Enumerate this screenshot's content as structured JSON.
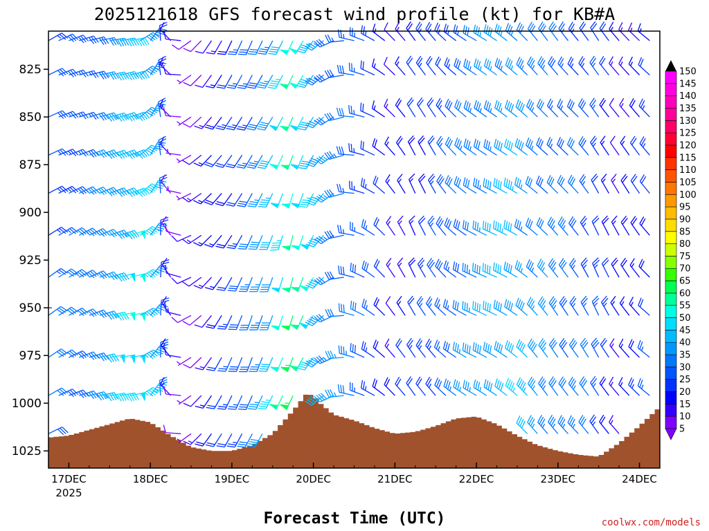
{
  "chart_data": {
    "type": "wind-profile",
    "title": "2025121618 GFS forecast wind profile (kt) for KB#A",
    "xlabel": "Forecast Time (UTC)",
    "ylabel": "",
    "credit": "coolwx.com/models",
    "y_ticks": [
      825,
      850,
      875,
      900,
      925,
      950,
      975,
      1000,
      1025
    ],
    "x_ticks": [
      {
        "label": "17DEC",
        "sub": "2025",
        "hour": 6
      },
      {
        "label": "18DEC",
        "sub": "",
        "hour": 30
      },
      {
        "label": "19DEC",
        "sub": "",
        "hour": 54
      },
      {
        "label": "20DEC",
        "sub": "",
        "hour": 78
      },
      {
        "label": "21DEC",
        "sub": "",
        "hour": 102
      },
      {
        "label": "22DEC",
        "sub": "",
        "hour": 126
      },
      {
        "label": "23DEC",
        "sub": "",
        "hour": 150
      },
      {
        "label": "24DEC",
        "sub": "",
        "hour": 174
      }
    ],
    "x_range_hours": [
      0,
      180
    ],
    "y_range_hpa": [
      805,
      1034
    ],
    "barb_levels_hpa": [
      810,
      828,
      850,
      870,
      890,
      912,
      934,
      954,
      976,
      996,
      1016
    ],
    "barb_interval_hours": 3,
    "colorbar": {
      "unit": "kt",
      "levels": [
        5,
        10,
        15,
        20,
        25,
        30,
        35,
        40,
        45,
        50,
        55,
        60,
        65,
        70,
        75,
        80,
        85,
        90,
        95,
        100,
        105,
        110,
        115,
        120,
        125,
        130,
        135,
        140,
        145,
        150
      ],
      "colors": [
        "#7f00ff",
        "#3300ff",
        "#0000ff",
        "#0033ff",
        "#0055ff",
        "#0077ff",
        "#0099ff",
        "#00bbff",
        "#00ddff",
        "#00ffe0",
        "#00ff99",
        "#00ff55",
        "#33ff00",
        "#88ff00",
        "#ccff00",
        "#ffff00",
        "#ffdd00",
        "#ffbb00",
        "#ff9900",
        "#ff7700",
        "#ff5500",
        "#ff3300",
        "#ff0000",
        "#ff0033",
        "#ff0066",
        "#ff0099",
        "#ff00bb",
        "#ff00dd",
        "#ff00ff"
      ]
    },
    "surface_pressure": {
      "hours": [
        0,
        6,
        12,
        18,
        24,
        30,
        36,
        42,
        48,
        54,
        60,
        66,
        72,
        76,
        78,
        80,
        84,
        90,
        96,
        102,
        108,
        114,
        120,
        126,
        132,
        138,
        144,
        150,
        156,
        162,
        168,
        174,
        180
      ],
      "pressure_hpa": [
        1018,
        1017,
        1014,
        1011,
        1008,
        1010,
        1017,
        1023,
        1025,
        1025,
        1022,
        1016,
        1004,
        995,
        996,
        1000,
        1006,
        1009,
        1013,
        1016,
        1015,
        1012,
        1008,
        1007,
        1011,
        1017,
        1022,
        1025,
        1027,
        1028,
        1021,
        1012,
        1002
      ]
    },
    "wind": {
      "description": "Barb speed (kt) and direction (deg from) vary smoothly by forecast hour; 11 levels every 3 hours.",
      "hours": [
        0,
        6,
        12,
        18,
        24,
        30,
        36,
        42,
        48,
        54,
        60,
        66,
        72,
        78,
        84,
        90,
        96,
        102,
        108,
        114,
        120,
        126,
        132,
        138,
        144,
        150,
        156,
        162,
        168,
        174,
        180
      ],
      "speed_kt": [
        28,
        30,
        35,
        44,
        50,
        40,
        12,
        8,
        15,
        22,
        30,
        42,
        60,
        48,
        35,
        30,
        25,
        15,
        20,
        25,
        30,
        35,
        40,
        42,
        35,
        32,
        30,
        25,
        15,
        20,
        25
      ],
      "direction_deg": [
        60,
        65,
        70,
        75,
        75,
        35,
        320,
        240,
        220,
        210,
        205,
        205,
        200,
        210,
        240,
        280,
        300,
        320,
        330,
        325,
        310,
        300,
        300,
        305,
        315,
        320,
        320,
        330,
        325,
        320,
        310
      ]
    }
  }
}
